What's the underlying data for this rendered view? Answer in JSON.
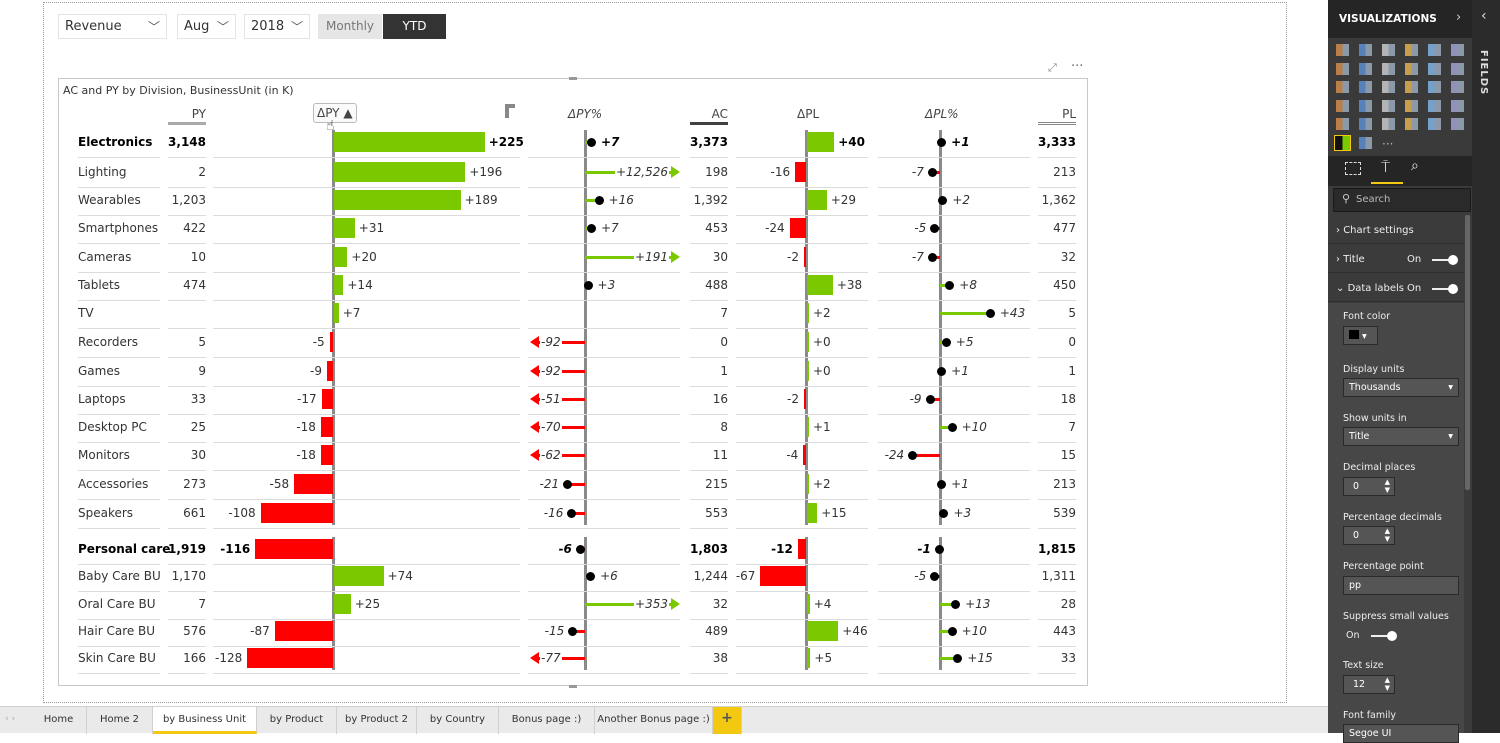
{
  "slicers": {
    "measure": "Revenue",
    "month": "Aug",
    "year": "2018",
    "toggle": {
      "options": [
        "Monthly",
        "YTD"
      ],
      "selected": "YTD"
    }
  },
  "visual": {
    "title": "AC and PY by Division, BusinessUnit (in K)",
    "headers": {
      "py": "PY",
      "dpy": "ΔPY ▲",
      "dpy_pct": "ΔPY%",
      "ac": "AC",
      "dpl": "ΔPL",
      "dpl_pct": "ΔPL%",
      "pl": "PL"
    },
    "colors": {
      "positive": "#7ac900",
      "negative": "#ff0000",
      "axis": "#8a8a8a"
    },
    "groups": [
      {
        "rows": [
          {
            "name": "Electronics",
            "py": "3,148",
            "dpy": "+225",
            "dpy_pct": "+7",
            "ac": "3,373",
            "dpl": "+40",
            "dpl_pct": "+1",
            "pl": "3,333",
            "total": true
          },
          {
            "name": "Lighting",
            "py": "2",
            "dpy": "+196",
            "dpy_pct": "+12,526",
            "ac": "198",
            "dpl": "-16",
            "dpl_pct": "-7",
            "pl": "213"
          },
          {
            "name": "Wearables",
            "py": "1,203",
            "dpy": "+189",
            "dpy_pct": "+16",
            "ac": "1,392",
            "dpl": "+29",
            "dpl_pct": "+2",
            "pl": "1,362"
          },
          {
            "name": "Smartphones",
            "py": "422",
            "dpy": "+31",
            "dpy_pct": "+7",
            "ac": "453",
            "dpl": "-24",
            "dpl_pct": "-5",
            "pl": "477"
          },
          {
            "name": "Cameras",
            "py": "10",
            "dpy": "+20",
            "dpy_pct": "+191",
            "ac": "30",
            "dpl": "-2",
            "dpl_pct": "-7",
            "pl": "32"
          },
          {
            "name": "Tablets",
            "py": "474",
            "dpy": "+14",
            "dpy_pct": "+3",
            "ac": "488",
            "dpl": "+38",
            "dpl_pct": "+8",
            "pl": "450"
          },
          {
            "name": "TV",
            "py": "",
            "dpy": "+7",
            "dpy_pct": "",
            "ac": "7",
            "dpl": "+2",
            "dpl_pct": "+43",
            "pl": "5"
          },
          {
            "name": "Recorders",
            "py": "5",
            "dpy": "-5",
            "dpy_pct": "-92",
            "ac": "0",
            "dpl": "+0",
            "dpl_pct": "+5",
            "pl": "0"
          },
          {
            "name": "Games",
            "py": "9",
            "dpy": "-9",
            "dpy_pct": "-92",
            "ac": "1",
            "dpl": "+0",
            "dpl_pct": "+1",
            "pl": "1"
          },
          {
            "name": "Laptops",
            "py": "33",
            "dpy": "-17",
            "dpy_pct": "-51",
            "ac": "16",
            "dpl": "-2",
            "dpl_pct": "-9",
            "pl": "18"
          },
          {
            "name": "Desktop PC",
            "py": "25",
            "dpy": "-18",
            "dpy_pct": "-70",
            "ac": "8",
            "dpl": "+1",
            "dpl_pct": "+10",
            "pl": "7"
          },
          {
            "name": "Monitors",
            "py": "30",
            "dpy": "-18",
            "dpy_pct": "-62",
            "ac": "11",
            "dpl": "-4",
            "dpl_pct": "-24",
            "pl": "15"
          },
          {
            "name": "Accessories",
            "py": "273",
            "dpy": "-58",
            "dpy_pct": "-21",
            "ac": "215",
            "dpl": "+2",
            "dpl_pct": "+1",
            "pl": "213"
          },
          {
            "name": "Speakers",
            "py": "661",
            "dpy": "-108",
            "dpy_pct": "-16",
            "ac": "553",
            "dpl": "+15",
            "dpl_pct": "+3",
            "pl": "539"
          }
        ]
      },
      {
        "rows": [
          {
            "name": "Personal care",
            "py": "1,919",
            "dpy": "-116",
            "dpy_pct": "-6",
            "ac": "1,803",
            "dpl": "-12",
            "dpl_pct": "-1",
            "pl": "1,815",
            "total": true
          },
          {
            "name": "Baby Care BU",
            "py": "1,170",
            "dpy": "+74",
            "dpy_pct": "+6",
            "ac": "1,244",
            "dpl": "-67",
            "dpl_pct": "-5",
            "pl": "1,311"
          },
          {
            "name": "Oral Care BU",
            "py": "7",
            "dpy": "+25",
            "dpy_pct": "+353",
            "ac": "32",
            "dpl": "+4",
            "dpl_pct": "+13",
            "pl": "28"
          },
          {
            "name": "Hair Care BU",
            "py": "576",
            "dpy": "-87",
            "dpy_pct": "-15",
            "ac": "489",
            "dpl": "+46",
            "dpl_pct": "+10",
            "pl": "443"
          },
          {
            "name": "Skin Care BU",
            "py": "166",
            "dpy": "-128",
            "dpy_pct": "-77",
            "ac": "38",
            "dpl": "+5",
            "dpl_pct": "+15",
            "pl": "33"
          }
        ]
      }
    ]
  },
  "panel": {
    "title": "VISUALIZATIONS",
    "fields_label": "FIELDS",
    "more_visuals": "···",
    "search_placeholder": "Search",
    "sections": [
      {
        "label": "Chart settings"
      },
      {
        "label": "Title",
        "state": "On"
      },
      {
        "label": "Data labels",
        "state": "On"
      }
    ],
    "font_color_label": "Font color",
    "font_color": "#000000",
    "display_units_label": "Display units",
    "display_units": "Thousands",
    "show_units_label": "Show units in",
    "show_units": "Title",
    "decimal_places_label": "Decimal places",
    "decimal_places": "0",
    "pct_decimals_label": "Percentage decimals",
    "pct_decimals": "0",
    "pct_point_label": "Percentage point",
    "pct_point": "pp",
    "suppress_label": "Suppress small values",
    "suppress_state": "On",
    "text_size_label": "Text size",
    "text_size": "12",
    "font_family_label": "Font family",
    "font_family": "Segoe UI"
  },
  "pages": {
    "tabs": [
      "Home",
      "Home 2",
      "by Business Unit",
      "by Product",
      "by Product 2",
      "by Country",
      "Bonus page :)",
      "Another Bonus page :)"
    ],
    "active": "by Business Unit",
    "add_label": "+"
  }
}
